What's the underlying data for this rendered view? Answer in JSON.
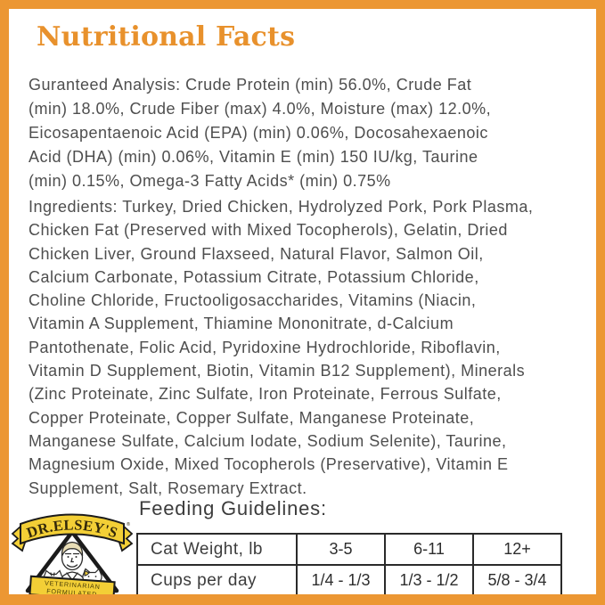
{
  "colors": {
    "frame_orange": "#EC9733",
    "title_orange": "#E8912C",
    "body_text_gray": "#4E4E4E",
    "heading_gray": "#3C3C3C",
    "table_border_black": "#2A2A2A",
    "logo_yellow": "#F3CF36",
    "logo_outline": "#1B1B1B"
  },
  "title": "Nutritional Facts",
  "guaranteed_analysis": {
    "lines": [
      "Guranteed Analysis: Crude Protein (min) 56.0%, Crude Fat",
      "(min) 18.0%, Crude Fiber (max) 4.0%, Moisture (max) 12.0%,",
      "Eicosapentaenoic Acid (EPA) (min) 0.06%, Docosahexaenoic",
      "Acid (DHA) (min) 0.06%, Vitamin E (min) 150 IU/kg, Taurine",
      "(min) 0.15%, Omega-3 Fatty Acids* (min) 0.75%"
    ]
  },
  "ingredients": {
    "lines": [
      "Ingredients: Turkey, Dried Chicken, Hydrolyzed Pork, Pork Plasma,",
      "Chicken Fat (Preserved with Mixed Tocopherols), Gelatin, Dried",
      "Chicken Liver, Ground Flaxseed, Natural Flavor, Salmon Oil,",
      "Calcium Carbonate, Potassium Citrate, Potassium Chloride,",
      "Choline Chloride, Fructooligosaccharides, Vitamins (Niacin,",
      "Vitamin A Supplement, Thiamine Mononitrate, d-Calcium",
      "Pantothenate, Folic Acid, Pyridoxine Hydrochloride, Riboflavin,",
      "Vitamin D Supplement, Biotin, Vitamin B12 Supplement), Minerals",
      "(Zinc Proteinate, Zinc Sulfate, Iron Proteinate, Ferrous Sulfate,",
      "Copper Proteinate, Copper Sulfate, Manganese Proteinate,",
      "Manganese Sulfate, Calcium Iodate, Sodium Selenite), Taurine,",
      "Magnesium Oxide, Mixed Tocopherols (Preservative), Vitamin E",
      "Supplement, Salt, Rosemary Extract."
    ]
  },
  "feeding_guidelines": {
    "heading": "Feeding Guidelines:",
    "table": {
      "rows": [
        {
          "label": "Cat Weight, lb",
          "values": [
            "3-5",
            "6-11",
            "12+"
          ]
        },
        {
          "label": "Cups per day",
          "values": [
            "1/4 - 1/3",
            "1/3 - 1/2",
            "5/8 - 3/4"
          ]
        }
      ]
    }
  },
  "logo": {
    "brand": "DR.ELSEY'S",
    "registered_mark": "®",
    "tagline_line1": "VETERINARIAN",
    "tagline_line2": "FORMULATED"
  }
}
